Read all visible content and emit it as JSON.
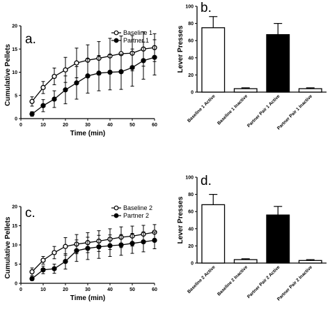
{
  "colors": {
    "ink": "#000000",
    "paper": "#ffffff"
  },
  "chart_data": [
    {
      "type": "line",
      "panel_label": "a.",
      "xlabel": "Time (min)",
      "ylabel": "Cumulative Pellets",
      "xlim": [
        0,
        60
      ],
      "ylim": [
        0,
        20
      ],
      "xticks": [
        0,
        10,
        20,
        30,
        40,
        50,
        60
      ],
      "yticks": [
        0,
        5,
        10,
        15,
        20
      ],
      "x": [
        5,
        10,
        15,
        20,
        25,
        30,
        35,
        40,
        45,
        50,
        55,
        60
      ],
      "legend_position": "top-right",
      "series": [
        {
          "name": "Baseline 1",
          "marker": "open-circle",
          "values": [
            3.7,
            6.7,
            9.1,
            10.5,
            12.0,
            12.6,
            13.0,
            13.5,
            14.0,
            14.1,
            15.0,
            15.3
          ],
          "errors": [
            1.0,
            1.3,
            1.8,
            2.7,
            3.2,
            3.3,
            3.6,
            3.8,
            3.8,
            3.8,
            3.7,
            3.0
          ]
        },
        {
          "name": "Partner 1",
          "marker": "filled-circle",
          "values": [
            1.0,
            2.8,
            4.2,
            6.2,
            7.7,
            9.2,
            9.8,
            10.0,
            10.1,
            11.0,
            12.5,
            13.2
          ],
          "errors": [
            0.5,
            1.3,
            1.8,
            3.0,
            3.5,
            3.7,
            3.8,
            3.8,
            3.8,
            4.0,
            4.0,
            3.8
          ]
        }
      ]
    },
    {
      "type": "bar",
      "panel_label": "b.",
      "ylabel": "Lever Presses",
      "ylim": [
        0,
        100
      ],
      "yticks": [
        0,
        20,
        40,
        60,
        80,
        100
      ],
      "categories": [
        "Baseline 1 Active",
        "Baseline 1 Inactive",
        "Partner Pair 1 Active",
        "Partner Pair 1 Inactive"
      ],
      "values": [
        75,
        4,
        67,
        4
      ],
      "errors": [
        13,
        1,
        13,
        1
      ],
      "fills": [
        "#ffffff",
        "#ffffff",
        "#000000",
        "#ffffff"
      ]
    },
    {
      "type": "line",
      "panel_label": "c.",
      "xlabel": "Time (min)",
      "ylabel": "Cumulative Pellets",
      "xlim": [
        0,
        60
      ],
      "ylim": [
        0,
        20
      ],
      "xticks": [
        0,
        10,
        20,
        30,
        40,
        50,
        60
      ],
      "yticks": [
        0,
        5,
        10,
        15,
        20
      ],
      "x": [
        5,
        10,
        15,
        20,
        25,
        30,
        35,
        40,
        45,
        50,
        55,
        60
      ],
      "legend_position": "top-right",
      "series": [
        {
          "name": "Baseline 2",
          "marker": "open-circle",
          "values": [
            3.0,
            6.0,
            8.0,
            9.6,
            10.2,
            10.6,
            11.0,
            11.5,
            12.0,
            12.3,
            12.8,
            13.3
          ],
          "errors": [
            1.0,
            1.0,
            1.6,
            2.3,
            2.5,
            2.6,
            2.7,
            2.7,
            2.7,
            2.6,
            2.3,
            2.0
          ]
        },
        {
          "name": "Partner 2",
          "marker": "filled-circle",
          "values": [
            1.2,
            3.5,
            3.8,
            5.7,
            8.5,
            9.1,
            9.5,
            9.8,
            10.0,
            10.4,
            10.8,
            11.2
          ],
          "errors": [
            0.5,
            1.0,
            1.2,
            2.0,
            2.8,
            2.9,
            3.0,
            2.8,
            2.7,
            2.6,
            2.6,
            2.2
          ]
        }
      ]
    },
    {
      "type": "bar",
      "panel_label": "d.",
      "ylabel": "Lever Presses",
      "ylim": [
        0,
        100
      ],
      "yticks": [
        0,
        20,
        40,
        60,
        80,
        100
      ],
      "categories": [
        "Baseline 2 Active",
        "Baseline 2 Inactive",
        "Partner Pair 2 Active",
        "Partner Pair 2 Inactive"
      ],
      "values": [
        68,
        4,
        56,
        3
      ],
      "errors": [
        12,
        1,
        10,
        1
      ],
      "fills": [
        "#ffffff",
        "#ffffff",
        "#000000",
        "#ffffff"
      ]
    }
  ]
}
